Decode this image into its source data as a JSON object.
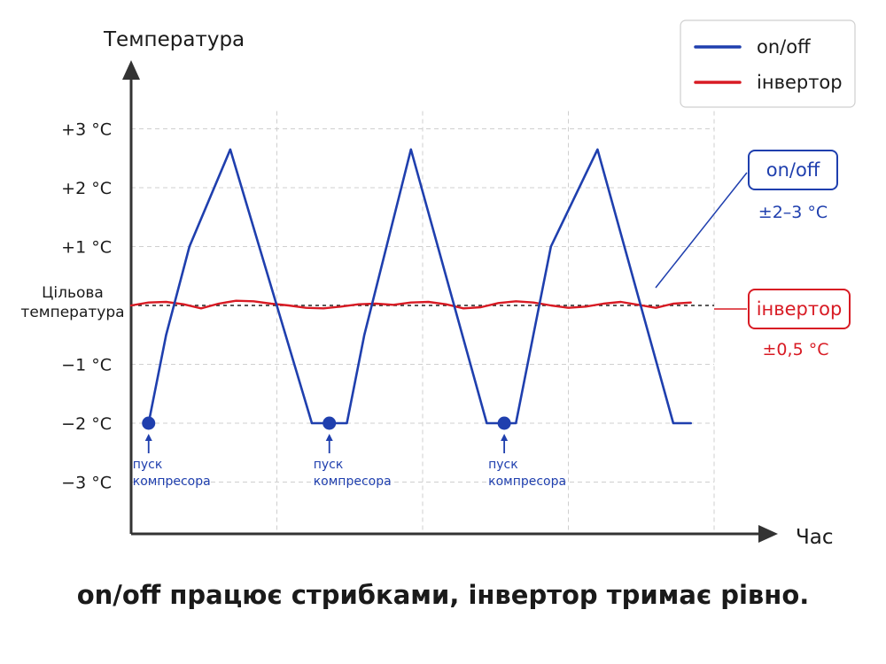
{
  "chart_data": {
    "type": "line",
    "ylabel": "Температура",
    "xlabel": "Час",
    "y_ticks": [
      {
        "value": 3,
        "label": "+3 °C"
      },
      {
        "value": 2,
        "label": "+2 °C"
      },
      {
        "value": 1,
        "label": "+1 °C"
      },
      {
        "value": -1,
        "label": "−1 °C"
      },
      {
        "value": -2,
        "label": "−2 °C"
      },
      {
        "value": -3,
        "label": "−3 °C"
      }
    ],
    "target_label": [
      "Цільова",
      "температура"
    ],
    "ylim": [
      -3.85,
      3.85
    ],
    "xlim": [
      0,
      100
    ],
    "grid": true,
    "legend_position": "top-right",
    "series": [
      {
        "name": "on/off",
        "color": "#1f3fae",
        "x": [
          3,
          6,
          10,
          17,
          31,
          34,
          37,
          40,
          48,
          61,
          64,
          66,
          69,
          72,
          80,
          93,
          96
        ],
        "y": [
          -2,
          -0.5,
          1,
          2.65,
          -2,
          -2,
          -2,
          -0.5,
          2.65,
          -2,
          -2,
          -2,
          -0.5,
          1,
          2.65,
          -2,
          -2
        ]
      },
      {
        "name": "інвертор",
        "color": "#d81b24",
        "x": [
          0,
          3,
          6,
          9,
          12,
          15,
          18,
          21,
          24,
          27,
          30,
          33,
          36,
          39,
          42,
          45,
          48,
          51,
          54,
          57,
          60,
          63,
          66,
          69,
          72,
          75,
          78,
          81,
          84,
          87,
          90,
          93,
          96
        ],
        "y": [
          0,
          0.05,
          0.06,
          0.02,
          -0.05,
          0.03,
          0.08,
          0.07,
          0.03,
          0.0,
          -0.04,
          -0.05,
          -0.02,
          0.02,
          0.03,
          0.01,
          0.05,
          0.06,
          0.02,
          -0.05,
          -0.03,
          0.04,
          0.07,
          0.05,
          0.0,
          -0.04,
          -0.02,
          0.03,
          0.06,
          0.01,
          -0.04,
          0.03,
          0.05
        ]
      }
    ],
    "compressor_starts": [
      {
        "x": 3,
        "y": -2,
        "label": [
          "пуск",
          "компресора"
        ]
      },
      {
        "x": 34,
        "y": -2,
        "label": [
          "пуск",
          "компресора"
        ]
      },
      {
        "x": 64,
        "y": -2,
        "label": [
          "пуск",
          "компресора"
        ]
      }
    ],
    "annotations": [
      {
        "series": "on/off",
        "box_text": "on/off",
        "range_text": "±2–3 °C",
        "color": "#1f3fae"
      },
      {
        "series": "інвертор",
        "box_text": "інвертор",
        "range_text": "±0,5 °C",
        "color": "#d81b24"
      }
    ]
  },
  "caption": "on/off працює стрибками, інвертор тримає рівно."
}
